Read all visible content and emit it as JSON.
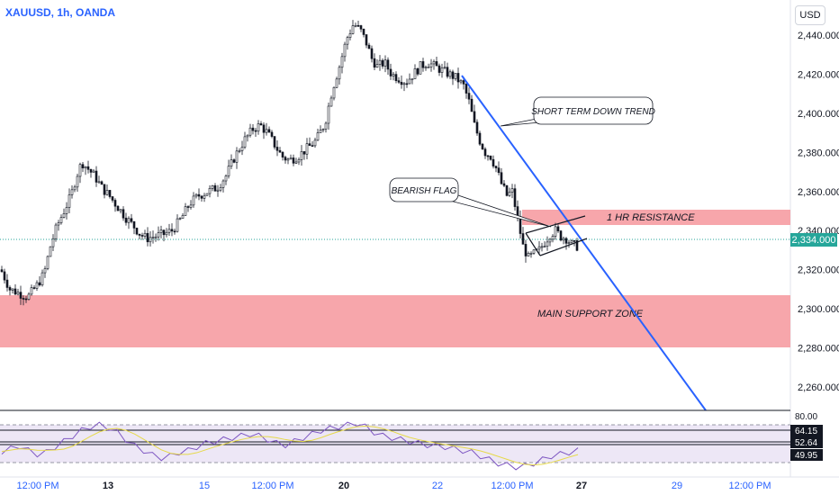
{
  "header": {
    "symbol": "XAUUSD, 1h, OANDA",
    "currency_button": "USD"
  },
  "chart_data": {
    "type": "candlestick",
    "y_axis": {
      "ticks": [
        "2,440.000",
        "2,420.000",
        "2,400.000",
        "2,380.000",
        "2,360.000",
        "2,340.000",
        "2,320.000",
        "2,300.000",
        "2,280.000",
        "2,260.000"
      ],
      "ylim": [
        2248,
        2458
      ]
    },
    "x_axis": {
      "ticks": [
        "12:00 PM",
        "13",
        "15",
        "12:00 PM",
        "20",
        "22",
        "12:00 PM",
        "27",
        "29",
        "12:00 PM"
      ]
    },
    "current_price": "2,334.000",
    "current_price_value": 2334,
    "price_series": [
      [
        0,
        2320
      ],
      [
        10,
        2310
      ],
      [
        20,
        2308
      ],
      [
        30,
        2306
      ],
      [
        40,
        2312
      ],
      [
        48,
        2318
      ],
      [
        55,
        2332
      ],
      [
        62,
        2342
      ],
      [
        70,
        2350
      ],
      [
        78,
        2358
      ],
      [
        84,
        2368
      ],
      [
        90,
        2375
      ],
      [
        96,
        2372
      ],
      [
        104,
        2368
      ],
      [
        112,
        2362
      ],
      [
        120,
        2358
      ],
      [
        130,
        2352
      ],
      [
        140,
        2346
      ],
      [
        148,
        2342
      ],
      [
        155,
        2338
      ],
      [
        162,
        2336
      ],
      [
        170,
        2337
      ],
      [
        180,
        2338
      ],
      [
        190,
        2340
      ],
      [
        200,
        2346
      ],
      [
        210,
        2354
      ],
      [
        220,
        2358
      ],
      [
        230,
        2360
      ],
      [
        240,
        2362
      ],
      [
        250,
        2368
      ],
      [
        260,
        2378
      ],
      [
        270,
        2386
      ],
      [
        280,
        2392
      ],
      [
        288,
        2394
      ],
      [
        296,
        2390
      ],
      [
        304,
        2384
      ],
      [
        312,
        2378
      ],
      [
        320,
        2376
      ],
      [
        330,
        2378
      ],
      [
        340,
        2382
      ],
      [
        350,
        2386
      ],
      [
        360,
        2395
      ],
      [
        368,
        2412
      ],
      [
        376,
        2424
      ],
      [
        384,
        2438
      ],
      [
        392,
        2446
      ],
      [
        400,
        2442
      ],
      [
        406,
        2436
      ],
      [
        412,
        2428
      ],
      [
        418,
        2424
      ],
      [
        426,
        2426
      ],
      [
        434,
        2420
      ],
      [
        442,
        2418
      ],
      [
        450,
        2416
      ],
      [
        458,
        2420
      ],
      [
        466,
        2424
      ],
      [
        474,
        2426
      ],
      [
        482,
        2424
      ],
      [
        490,
        2422
      ],
      [
        498,
        2420
      ],
      [
        506,
        2418
      ],
      [
        514,
        2414
      ],
      [
        520,
        2406
      ],
      [
        526,
        2394
      ],
      [
        532,
        2386
      ],
      [
        538,
        2380
      ],
      [
        544,
        2378
      ],
      [
        550,
        2372
      ],
      [
        556,
        2364
      ],
      [
        562,
        2358
      ],
      [
        568,
        2360
      ],
      [
        574,
        2346
      ],
      [
        580,
        2332
      ],
      [
        586,
        2326
      ],
      [
        592,
        2328
      ],
      [
        598,
        2330
      ],
      [
        604,
        2334
      ],
      [
        610,
        2338
      ],
      [
        616,
        2340
      ],
      [
        622,
        2337
      ],
      [
        628,
        2336
      ],
      [
        634,
        2333
      ],
      [
        640,
        2332
      ]
    ],
    "support_zone": {
      "label": "MAIN SUPPORT ZONE",
      "from": 2277,
      "to": 2304
    },
    "resistance_zone": {
      "label": "1 HR RESISTANCE",
      "from": 2342,
      "to": 2350
    },
    "annotations": [
      {
        "label": "SHORT TERM DOWN TREND"
      },
      {
        "label": "BEARISH FLAG"
      }
    ],
    "trendline": {
      "from_price": 2419,
      "to_price": 2252
    },
    "rsi": {
      "ticks": [
        "80.00",
        "64.15",
        "52.64",
        "49.95"
      ],
      "values": [
        49,
        52,
        55,
        50,
        46,
        48,
        54,
        60,
        66,
        72,
        76,
        78,
        75,
        70,
        62,
        55,
        50,
        45,
        42,
        44,
        48,
        50,
        54,
        58,
        60,
        62,
        64,
        66,
        68,
        66,
        62,
        58,
        56,
        60,
        64,
        68,
        72,
        74,
        76,
        78,
        80,
        76,
        70,
        66,
        64,
        62,
        60,
        58,
        56,
        55,
        54,
        52,
        50,
        48,
        44,
        40,
        36,
        34,
        32,
        33,
        36,
        40,
        44,
        46,
        48,
        50
      ]
    }
  }
}
